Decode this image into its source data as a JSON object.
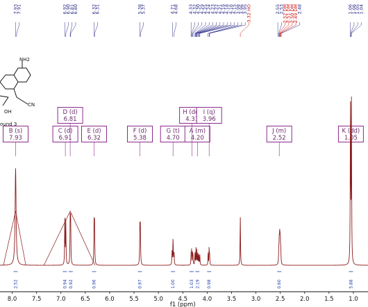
{
  "colors": {
    "trace": "#8b1a1a",
    "peak_labels": "#2a2a8a",
    "peak_labels_alt": "#d01010",
    "boxes": "#8b2a8b",
    "integrals": "#1a3aaa"
  },
  "structure": {
    "amine_label": "NH2",
    "nitrile_label": "CN",
    "hydroxyl_label": "OH",
    "caption": "ound 3"
  },
  "chart_data": {
    "type": "line",
    "xlabel": "f1 (ppm)",
    "xlim": [
      8.25,
      0.7
    ],
    "x_ticks": [
      "8.0",
      "7.5",
      "7.0",
      "6.5",
      "6.0",
      "5.5",
      "5.0",
      "4.5",
      "4.0",
      "3.5",
      "3.0",
      "2.5",
      "2.0",
      "1.5",
      "1.0",
      "0.5"
    ],
    "x_tick_values": [
      8.0,
      7.5,
      7.0,
      6.5,
      6.0,
      5.5,
      5.0,
      4.5,
      4.0,
      3.5,
      3.0,
      2.5,
      2.0,
      1.5,
      1.0,
      0.5
    ],
    "peak_labels": [
      {
        "x": 7.93,
        "text": "7.93"
      },
      {
        "x": 7.91,
        "text": "7.91"
      },
      {
        "x": 6.92,
        "text": "6.92"
      },
      {
        "x": 6.9,
        "text": "6.90"
      },
      {
        "x": 6.81,
        "text": "6.81"
      },
      {
        "x": 6.8,
        "text": "6.80"
      },
      {
        "x": 6.32,
        "text": "6.32"
      },
      {
        "x": 6.31,
        "text": "6.31"
      },
      {
        "x": 5.38,
        "text": "5.38"
      },
      {
        "x": 5.37,
        "text": "5.37"
      },
      {
        "x": 4.71,
        "text": "4.71"
      },
      {
        "x": 4.68,
        "text": "4.68"
      },
      {
        "x": 4.33,
        "text": "4.33"
      },
      {
        "x": 4.32,
        "text": "4.32"
      },
      {
        "x": 4.3,
        "text": "4.30"
      },
      {
        "x": 4.29,
        "text": "4.29"
      },
      {
        "x": 4.25,
        "text": "4.25"
      },
      {
        "x": 4.24,
        "text": "4.24"
      },
      {
        "x": 4.23,
        "text": "4.23"
      },
      {
        "x": 4.22,
        "text": "4.22"
      },
      {
        "x": 4.21,
        "text": "4.21"
      },
      {
        "x": 4.19,
        "text": "4.19"
      },
      {
        "x": 4.18,
        "text": "4.18"
      },
      {
        "x": 4.16,
        "text": "4.16"
      },
      {
        "x": 4.15,
        "text": "4.15"
      },
      {
        "x": 3.98,
        "text": "3.98"
      },
      {
        "x": 3.96,
        "text": "3.96"
      },
      {
        "x": 3.95,
        "text": "3.95"
      },
      {
        "x": 3.32,
        "text": "3.32 HO",
        "alt": true
      },
      {
        "x": 2.55,
        "text": "2.55"
      },
      {
        "x": 2.53,
        "text": "2.53"
      },
      {
        "x": 2.52,
        "text": "2.52 DM",
        "alt": true
      },
      {
        "x": 2.51,
        "text": "2.51 DM",
        "alt": true
      },
      {
        "x": 2.5,
        "text": "2.50 DM",
        "alt": true
      },
      {
        "x": 2.49,
        "text": "2.49 DM",
        "alt": true
      },
      {
        "x": 2.48,
        "text": "2.48"
      },
      {
        "x": 1.06,
        "text": "1.06"
      },
      {
        "x": 1.06,
        "text": "1.06"
      },
      {
        "x": 1.05,
        "text": "1.05"
      },
      {
        "x": 1.04,
        "text": "1.04"
      }
    ],
    "multiplets": [
      {
        "x": 7.93,
        "id": "B (s)",
        "shift": "7.93",
        "row": 2
      },
      {
        "x": 6.91,
        "id": "C (d)",
        "shift": "6.91",
        "row": 2
      },
      {
        "x": 6.81,
        "id": "D (d)",
        "shift": "6.81",
        "row": 1
      },
      {
        "x": 6.32,
        "id": "E (d)",
        "shift": "6.32",
        "row": 2
      },
      {
        "x": 5.38,
        "id": "F (d)",
        "shift": "5.38",
        "row": 2
      },
      {
        "x": 4.7,
        "id": "G (t)",
        "shift": "4.70",
        "row": 2
      },
      {
        "x": 4.31,
        "id": "H (dd)",
        "shift": "4.31",
        "row": 1
      },
      {
        "x": 3.96,
        "id": "I (q)",
        "shift": "3.96",
        "row": 1
      },
      {
        "x": 4.2,
        "id": "A (m)",
        "shift": "4.20",
        "row": 2
      },
      {
        "x": 2.52,
        "id": "J (m)",
        "shift": "2.52",
        "row": 2
      },
      {
        "x": 1.05,
        "id": "K (dd)",
        "shift": "1.05",
        "row": 2
      }
    ],
    "integrals": [
      {
        "x": 7.93,
        "value": "2.52"
      },
      {
        "x": 6.92,
        "value": "0.94"
      },
      {
        "x": 6.8,
        "value": "0.92"
      },
      {
        "x": 6.32,
        "value": "0.96"
      },
      {
        "x": 5.38,
        "value": "0.97"
      },
      {
        "x": 4.7,
        "value": "1.00"
      },
      {
        "x": 4.32,
        "value": "1.03"
      },
      {
        "x": 4.2,
        "value": "2.19"
      },
      {
        "x": 3.96,
        "value": "0.98"
      },
      {
        "x": 2.52,
        "value": "0.60"
      },
      {
        "x": 1.05,
        "value": "5.88"
      }
    ],
    "peaks": [
      {
        "x": 7.93,
        "h": 0.58,
        "w": 0.012
      },
      {
        "x": 6.92,
        "h": 0.27,
        "w": 0.005
      },
      {
        "x": 6.9,
        "h": 0.26,
        "w": 0.005
      },
      {
        "x": 6.81,
        "h": 0.27,
        "w": 0.005
      },
      {
        "x": 6.8,
        "h": 0.26,
        "w": 0.005
      },
      {
        "x": 6.32,
        "h": 0.24,
        "w": 0.005
      },
      {
        "x": 6.31,
        "h": 0.23,
        "w": 0.005
      },
      {
        "x": 5.38,
        "h": 0.23,
        "w": 0.005
      },
      {
        "x": 5.37,
        "h": 0.22,
        "w": 0.005
      },
      {
        "x": 4.72,
        "h": 0.08,
        "w": 0.005
      },
      {
        "x": 4.7,
        "h": 0.16,
        "w": 0.005
      },
      {
        "x": 4.68,
        "h": 0.08,
        "w": 0.005
      },
      {
        "x": 4.33,
        "h": 0.07,
        "w": 0.004
      },
      {
        "x": 4.32,
        "h": 0.09,
        "w": 0.004
      },
      {
        "x": 4.3,
        "h": 0.07,
        "w": 0.004
      },
      {
        "x": 4.29,
        "h": 0.06,
        "w": 0.004
      },
      {
        "x": 4.25,
        "h": 0.08,
        "w": 0.004
      },
      {
        "x": 4.23,
        "h": 0.1,
        "w": 0.004
      },
      {
        "x": 4.21,
        "h": 0.09,
        "w": 0.004
      },
      {
        "x": 4.19,
        "h": 0.08,
        "w": 0.004
      },
      {
        "x": 4.17,
        "h": 0.07,
        "w": 0.004
      },
      {
        "x": 4.15,
        "h": 0.06,
        "w": 0.004
      },
      {
        "x": 3.98,
        "h": 0.07,
        "w": 0.004
      },
      {
        "x": 3.96,
        "h": 0.1,
        "w": 0.004
      },
      {
        "x": 3.95,
        "h": 0.07,
        "w": 0.004
      },
      {
        "x": 3.32,
        "h": 0.3,
        "w": 0.005
      },
      {
        "x": 2.53,
        "h": 0.08,
        "w": 0.005
      },
      {
        "x": 2.52,
        "h": 0.14,
        "w": 0.005
      },
      {
        "x": 2.51,
        "h": 0.17,
        "w": 0.005
      },
      {
        "x": 2.5,
        "h": 0.14,
        "w": 0.005
      },
      {
        "x": 2.49,
        "h": 0.08,
        "w": 0.005
      },
      {
        "x": 1.06,
        "h": 0.98,
        "w": 0.005
      },
      {
        "x": 1.04,
        "h": 0.95,
        "w": 0.005
      }
    ]
  }
}
